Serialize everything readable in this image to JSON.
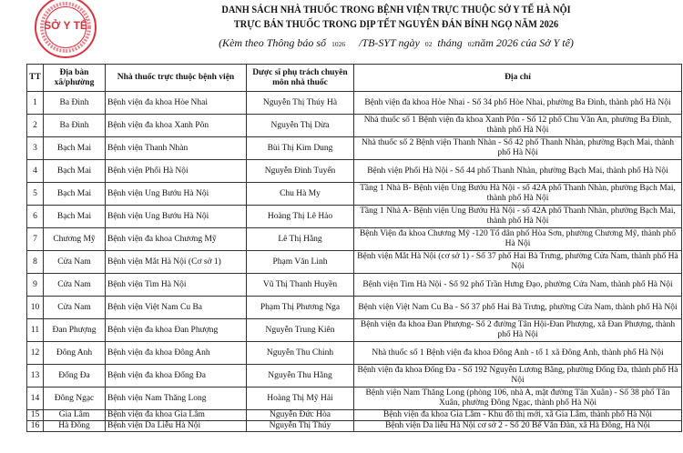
{
  "stamp": {
    "text": "SỞ Y TẾ",
    "ring_text": "CỘNG HÒA XÃ HỘI CHỦ NGHĨA VIỆT NAM · THÀNH PHỐ HÀ NỘI",
    "color": "#d9333f"
  },
  "title_line1": "DANH SÁCH NHÀ THUỐC TRONG BỆNH VIỆN TRỰC THUỘC SỞ Y TẾ HÀ NỘI",
  "title_line2": "TRỰC BÁN THUỐC TRONG DỊP TẾT NGUYÊN ĐÁN BÍNH NGỌ NĂM 2026",
  "subtitle": {
    "p1": "(Kèm theo Thông báo số",
    "num": "1026",
    "p2": "/TB-SYT ngày",
    "day": "02",
    "p3": "tháng",
    "month": "02",
    "p4": "năm 2026 của Sở Y tế)"
  },
  "headers": [
    "TT",
    "Địa bàn xã/phường",
    "Nhà thuốc trực thuộc bệnh viện",
    "Dược sĩ phụ trách chuyên môn nhà thuốc",
    "Địa chỉ"
  ],
  "rows": [
    [
      "1",
      "Ba Đình",
      "Bệnh viện đa khoa Hòe Nhai",
      "Nguyễn Thị Thúy Hà",
      "Bệnh viện đa khoa Hòe Nhai - Số 34 phố Hòe Nhai, phường Ba Đình, thành phố Hà Nội"
    ],
    [
      "2",
      "Ba Đình",
      "Bệnh viện đa khoa Xanh Pôn",
      "Nguyễn Thị Dừa",
      "Nhà thuốc số 1 Bệnh viện đa khoa Xanh Pôn - Số 12 phố Chu Văn An, phường Ba Đình, thành phố Hà Nội"
    ],
    [
      "3",
      "Bạch Mai",
      "Bệnh viện Thanh Nhàn",
      "Bùi Thị Kim Dung",
      "Nhà thuốc số 2 Bệnh viện Thanh Nhàn - Số 42 phố Thanh Nhàn, phường Bạch Mai, thành phố Hà Nội"
    ],
    [
      "4",
      "Bạch Mai",
      "Bệnh viện Phổi Hà Nội",
      "Nguyễn Đình Tuyến",
      "Bệnh viện Phổi Hà Nội - Số 44 phố Thanh Nhàn, phường Bạch Mai, thành phố Hà Nội"
    ],
    [
      "5",
      "Bạch Mai",
      "Bệnh viện Ung Bướu Hà Nội",
      "Chu Hà My",
      "Tầng 1 Nhà B- Bệnh viện Ung Bướu Hà Nội - số 42A phố Thanh Nhàn, phường Bạch Mai, thành phố Hà Nội"
    ],
    [
      "6",
      "Bạch Mai",
      "Bệnh viện Ung Bướu Hà Nội",
      "Hoàng Thị Lê Hảo",
      "Tầng 1 Nhà A- Bệnh viện Ung Bướu Hà Nội - số 42A phố Thanh Nhàn, phường Bạch Mai, thành phố Hà Nội"
    ],
    [
      "7",
      "Chương Mỹ",
      "Bệnh viện đa khoa  Chương Mỹ",
      "Lê Thị Hằng",
      "Bệnh Viện đa khoa Chương Mỹ -120 Tổ dân phố Hòa Sơn, phường Chương Mỹ, thành phố Hà Nội"
    ],
    [
      "8",
      "Cửa Nam",
      "Bệnh viện Mắt Hà Nội (Cơ sở 1)",
      "Phạm Văn Linh",
      "Bệnh viện Mắt Hà Nội (cơ sở 1) - Số 37 phố Hai Bà Trưng, phường Cửa Nam, thành phố Hà Nội"
    ],
    [
      "9",
      "Cửa Nam",
      "Bệnh viện Tim Hà Nội",
      "Vũ Thị Thanh Huyền",
      "Bệnh viện Tim Hà Nội - Số 92 phố Trần Hưng Đạo, phường Cửa Nam, thành phố Hà Nội"
    ],
    [
      "10",
      "Cửa Nam",
      "Bệnh viện Việt Nam Cu Ba",
      "Phạm Thị Phương Nga",
      "Bệnh viện Việt Nam Cu Ba - Số 37 phố Hai Bà Trưng, phường Cửa Nam, thành phố Hà Nội"
    ],
    [
      "11",
      "Đan Phượng",
      "Bệnh viện đa khoa  Đan Phượng",
      "Nguyễn Trung Kiên",
      "Bệnh viện đa khoa  Đan Phượng- Số 2 đường Tân Hội-Đan Phượng, xã Đan Phượng, thành phố Hà Nội"
    ],
    [
      "12",
      "Đông Anh",
      "Bệnh viện đa khoa Đông Anh",
      "Nguyễn Thu Chinh",
      "Nhà thuốc số 1 Bệnh viện đa khoa Đông Anh - tổ 1 xã Đông Anh, thành phố Hà Nội"
    ],
    [
      "13",
      "Đống Đa",
      "Bệnh viện đa khoa Đống Đa",
      "Nguyễn Thu Hằng",
      "Bệnh viện đa khoa Đống Đa - Số 192 Nguyễn Lương Bằng, phường Đống Đa, thành phố Hà Nội"
    ],
    [
      "14",
      "Đông Ngạc",
      "Bệnh viện Nam Thăng Long",
      "Hoàng Thị Mỹ Hải",
      "Bệnh viện Nam Thăng Long (phòng 106, nhà A, mặt đường Tân Xuân) - Số 38 phố Tân Xuân, phường Đông Ngạc, thành phố Hà Nội"
    ],
    [
      "15",
      "Gia Lâm",
      "Bệnh viện đa khoa Gia Lâm",
      "Nguyễn Đức Hòa",
      "Bệnh viện đa khoa Gia Lâm - Khu đô thị mới, xã Gia Lâm, thành phố Hà Nội"
    ],
    [
      "16",
      "Hà Đông",
      "Bệnh viện Da Liễu Hà Nội",
      "Nguyễn Thị Thúy",
      "Bệnh viện Da liễu Hà Nội cơ sở 2 - Số 20 Bế Văn Đàn, xã Hà Đông, Hà Nội"
    ]
  ]
}
